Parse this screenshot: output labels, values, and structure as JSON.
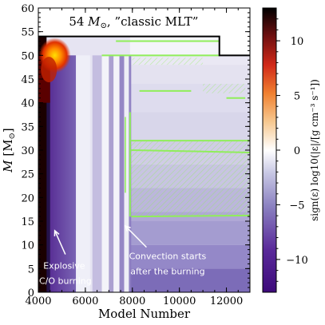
{
  "chart_data": {
    "type": "heatmap",
    "title": "54 M⊙, ”classic MLT”",
    "title_mass": "54",
    "title_msun": "M",
    "title_rest": ", ”classic MLT”",
    "xlabel": "Model Number",
    "ylabel_symbol": "M",
    "ylabel_unit": "[M",
    "ylabel_unit_close": "]",
    "xlim": [
      4000,
      13000
    ],
    "ylim": [
      0,
      60
    ],
    "xticks": [
      "4000",
      "6000",
      "8000",
      "10000",
      "12000"
    ],
    "xtick_values": [
      4000,
      6000,
      8000,
      10000,
      12000
    ],
    "yticks": [
      "0",
      "5",
      "10",
      "15",
      "20",
      "25",
      "30",
      "35",
      "40",
      "45",
      "50",
      "55",
      "60"
    ],
    "ytick_values": [
      0,
      5,
      10,
      15,
      20,
      25,
      30,
      35,
      40,
      45,
      50,
      55,
      60
    ],
    "colorbar": {
      "label": "sign(ε) log10(|ε|/[g cm⁻³ s⁻¹])",
      "range": [
        -13,
        13
      ],
      "ticks": [
        "−10",
        "−5",
        "0",
        "5",
        "10"
      ],
      "tick_values": [
        -10,
        -5,
        0,
        5,
        10
      ],
      "colormap": "purple-white-red-black"
    },
    "stellar_surface": {
      "x": [
        4000,
        11700,
        11700,
        13000
      ],
      "y": [
        54,
        54,
        50,
        50
      ]
    },
    "annotations": [
      {
        "text_line1": "Explosive",
        "text_line2": "C/O burning",
        "arrow_to": [
          4700,
          13
        ]
      },
      {
        "text_line1": "Convection starts",
        "text_line2": "after the burning",
        "arrow_to": [
          7700,
          14
        ]
      }
    ],
    "colors": {
      "convection_hatch": "#90ee5a",
      "surface_line": "#000000",
      "hot": "#ffd400",
      "core": "#2a0000"
    }
  }
}
